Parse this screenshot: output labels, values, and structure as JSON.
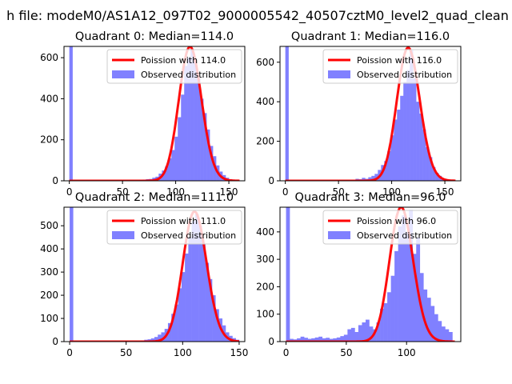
{
  "suptitle": "h file: modeM0/AS1A12_097T02_9000005542_40507cztM0_level2_quad_clean",
  "colors": {
    "poisson": "#ff0000",
    "histogram": "#8080ff",
    "axes": "#000000"
  },
  "chart_data": [
    {
      "type": "bar",
      "title": "Quadrant 0: Median=114.0",
      "xlabel": "",
      "ylabel": "",
      "xlim": [
        -5,
        165
      ],
      "ylim": [
        0,
        655
      ],
      "xticks": [
        0,
        50,
        100,
        150
      ],
      "yticks": [
        0,
        200,
        400,
        600
      ],
      "legend": "top-right",
      "series": [
        {
          "name": "Poission with 114.0",
          "kind": "line",
          "mean": 114.0,
          "x_range": [
            0,
            160
          ]
        },
        {
          "name": "Observed distribution",
          "kind": "histogram",
          "bin_width": 3.2,
          "bins": [
            [
              0,
              655
            ],
            [
              66,
              5
            ],
            [
              69,
              6
            ],
            [
              72,
              8
            ],
            [
              75,
              9
            ],
            [
              78,
              15
            ],
            [
              81,
              20
            ],
            [
              84,
              35
            ],
            [
              87,
              50
            ],
            [
              90,
              70
            ],
            [
              93,
              110
            ],
            [
              96,
              150
            ],
            [
              99,
              215
            ],
            [
              102,
              310
            ],
            [
              105,
              420
            ],
            [
              108,
              560
            ],
            [
              111,
              600
            ],
            [
              114,
              640
            ],
            [
              117,
              580
            ],
            [
              120,
              500
            ],
            [
              123,
              400
            ],
            [
              126,
              330
            ],
            [
              129,
              250
            ],
            [
              132,
              170
            ],
            [
              135,
              120
            ],
            [
              138,
              75
            ],
            [
              141,
              45
            ],
            [
              144,
              28
            ],
            [
              147,
              15
            ],
            [
              150,
              8
            ],
            [
              153,
              4
            ],
            [
              156,
              2
            ]
          ]
        }
      ]
    },
    {
      "type": "bar",
      "title": "Quadrant 1: Median=116.0",
      "xlabel": "",
      "ylabel": "",
      "xlim": [
        -5,
        165
      ],
      "ylim": [
        0,
        680
      ],
      "xticks": [
        0,
        50,
        100,
        150
      ],
      "yticks": [
        0,
        200,
        400,
        600
      ],
      "legend": "top-right",
      "series": [
        {
          "name": "Poission with 116.0",
          "kind": "line",
          "mean": 116.0,
          "x_range": [
            0,
            160
          ]
        },
        {
          "name": "Observed distribution",
          "kind": "histogram",
          "bin_width": 3.2,
          "bins": [
            [
              0,
              680
            ],
            [
              66,
              10
            ],
            [
              69,
              8
            ],
            [
              72,
              15
            ],
            [
              75,
              10
            ],
            [
              78,
              18
            ],
            [
              81,
              25
            ],
            [
              84,
              35
            ],
            [
              87,
              55
            ],
            [
              90,
              80
            ],
            [
              93,
              100
            ],
            [
              96,
              150
            ],
            [
              99,
              230
            ],
            [
              102,
              310
            ],
            [
              105,
              360
            ],
            [
              108,
              430
            ],
            [
              111,
              500
            ],
            [
              114,
              560
            ],
            [
              117,
              660
            ],
            [
              120,
              520
            ],
            [
              123,
              400
            ],
            [
              126,
              340
            ],
            [
              129,
              260
            ],
            [
              132,
              170
            ],
            [
              135,
              120
            ],
            [
              138,
              70
            ],
            [
              141,
              40
            ],
            [
              144,
              25
            ],
            [
              147,
              12
            ],
            [
              150,
              8
            ],
            [
              153,
              4
            ]
          ]
        }
      ]
    },
    {
      "type": "bar",
      "title": "Quadrant 2: Median=111.0",
      "xlabel": "",
      "ylabel": "",
      "xlim": [
        -5,
        155
      ],
      "ylim": [
        0,
        580
      ],
      "xticks": [
        0,
        50,
        100,
        150
      ],
      "yticks": [
        0,
        100,
        200,
        300,
        400,
        500
      ],
      "legend": "top-right",
      "series": [
        {
          "name": "Poission with 111.0",
          "kind": "line",
          "mean": 111.0,
          "x_range": [
            0,
            150
          ]
        },
        {
          "name": "Observed distribution",
          "kind": "histogram",
          "bin_width": 3.2,
          "bins": [
            [
              0,
              580
            ],
            [
              63,
              5
            ],
            [
              66,
              8
            ],
            [
              69,
              10
            ],
            [
              72,
              14
            ],
            [
              75,
              20
            ],
            [
              78,
              30
            ],
            [
              81,
              40
            ],
            [
              84,
              55
            ],
            [
              87,
              80
            ],
            [
              90,
              120
            ],
            [
              93,
              160
            ],
            [
              96,
              230
            ],
            [
              99,
              300
            ],
            [
              102,
              380
            ],
            [
              105,
              450
            ],
            [
              108,
              520
            ],
            [
              111,
              550
            ],
            [
              114,
              500
            ],
            [
              117,
              420
            ],
            [
              120,
              340
            ],
            [
              123,
              270
            ],
            [
              126,
              200
            ],
            [
              129,
              140
            ],
            [
              132,
              100
            ],
            [
              135,
              70
            ],
            [
              138,
              40
            ],
            [
              141,
              25
            ],
            [
              144,
              15
            ],
            [
              147,
              8
            ]
          ]
        }
      ]
    },
    {
      "type": "bar",
      "title": "Quadrant 3: Median=96.0",
      "xlabel": "",
      "ylabel": "",
      "xlim": [
        -5,
        145
      ],
      "ylim": [
        0,
        490
      ],
      "xticks": [
        0,
        50,
        100
      ],
      "yticks": [
        0,
        100,
        200,
        300,
        400
      ],
      "legend": "top-right",
      "series": [
        {
          "name": "Poission with 96.0",
          "kind": "line",
          "mean": 96.0,
          "x_range": [
            0,
            140
          ]
        },
        {
          "name": "Observed distribution",
          "kind": "histogram",
          "bin_width": 3.2,
          "bins": [
            [
              0,
              490
            ],
            [
              3,
              10
            ],
            [
              6,
              8
            ],
            [
              9,
              12
            ],
            [
              12,
              18
            ],
            [
              15,
              14
            ],
            [
              18,
              10
            ],
            [
              21,
              12
            ],
            [
              24,
              15
            ],
            [
              27,
              18
            ],
            [
              30,
              12
            ],
            [
              33,
              14
            ],
            [
              36,
              10
            ],
            [
              39,
              12
            ],
            [
              42,
              15
            ],
            [
              45,
              20
            ],
            [
              48,
              25
            ],
            [
              51,
              45
            ],
            [
              54,
              50
            ],
            [
              57,
              35
            ],
            [
              60,
              60
            ],
            [
              63,
              70
            ],
            [
              66,
              80
            ],
            [
              69,
              55
            ],
            [
              72,
              45
            ],
            [
              75,
              70
            ],
            [
              78,
              120
            ],
            [
              81,
              140
            ],
            [
              84,
              180
            ],
            [
              87,
              240
            ],
            [
              90,
              330
            ],
            [
              93,
              420
            ],
            [
              96,
              460
            ],
            [
              99,
              400
            ],
            [
              102,
              480
            ],
            [
              105,
              320
            ],
            [
              108,
              380
            ],
            [
              111,
              250
            ],
            [
              114,
              190
            ],
            [
              117,
              160
            ],
            [
              120,
              130
            ],
            [
              123,
              100
            ],
            [
              126,
              75
            ],
            [
              129,
              55
            ],
            [
              132,
              45
            ],
            [
              135,
              35
            ]
          ]
        }
      ]
    }
  ]
}
